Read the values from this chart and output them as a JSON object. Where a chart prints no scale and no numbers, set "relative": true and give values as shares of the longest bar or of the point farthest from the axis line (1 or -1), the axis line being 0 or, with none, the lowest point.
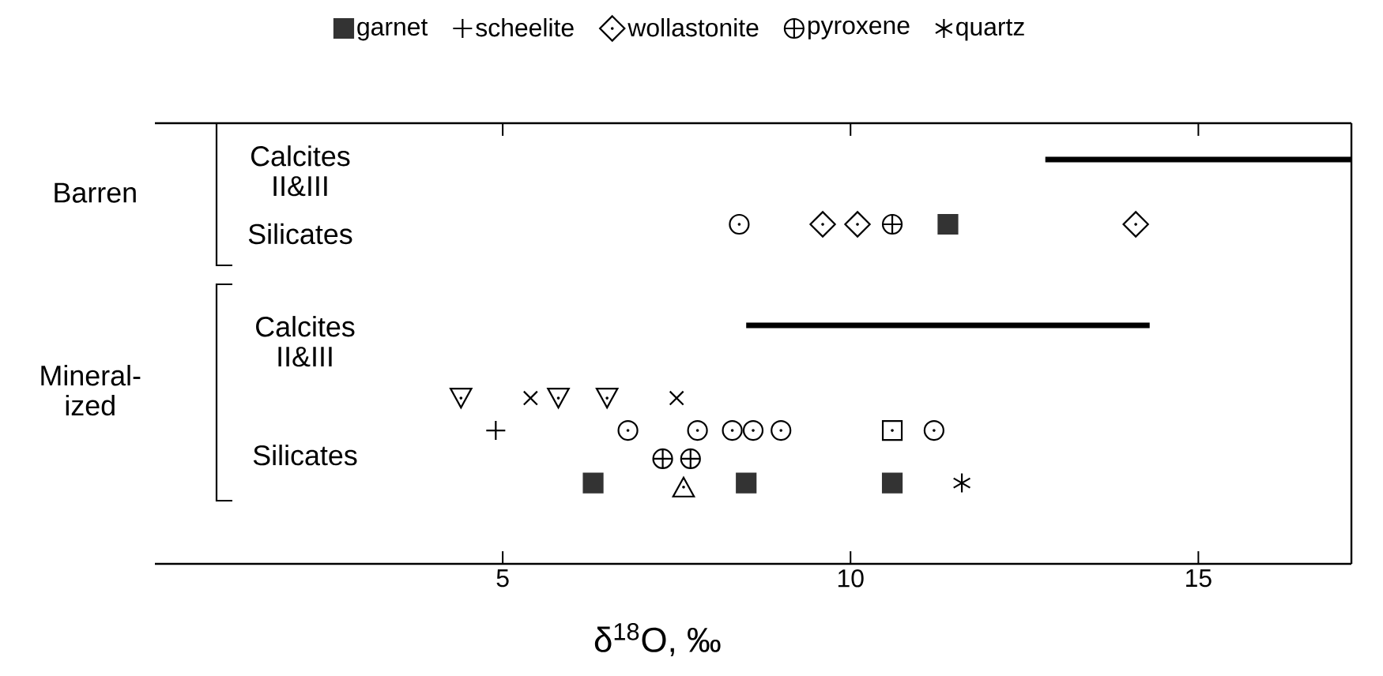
{
  "chart_data": {
    "type": "scatter",
    "xlabel": "δ$^{18}$O, ‰",
    "relative": true,
    "xlim": [
      0,
      17.2
    ],
    "xticks": [
      5,
      10,
      15
    ],
    "tick_labels": "x",
    "legend": "top",
    "annotations": [
      "Barren",
      "Calcites II&III",
      "Silicates",
      "Mineral- ized",
      "Calcites II&III",
      "Silicates"
    ],
    "series": [
      {
        "name": "garnet",
        "color": "#333333",
        "marker": "square",
        "x": [
          11.4,
          6.3,
          8.5,
          10.6
        ],
        "values": [
          0.84,
          0.2,
          0.2,
          0.2
        ]
      },
      {
        "name": "scheelite",
        "color": "#000000",
        "marker": "cross",
        "x": [
          4.9
        ],
        "values": [
          0.33
        ]
      },
      {
        "name": "wollastonite",
        "color": "#000000",
        "marker": "diamond",
        "x": [
          9.6,
          10.1,
          14.1
        ],
        "values": [
          0.84,
          0.84,
          0.84
        ]
      },
      {
        "name": "pyroxene",
        "color": "#000000",
        "x": [
          10.6,
          7.3,
          7.7
        ],
        "values": [
          0.84,
          0.26,
          0.26
        ]
      },
      {
        "name": "quartz",
        "color": "#000000",
        "x": [
          11.6
        ],
        "values": [
          0.2
        ]
      },
      {
        "color": "#000000",
        "marker": "circle",
        "x": [
          8.4,
          6.8,
          7.8,
          8.3,
          8.6,
          9.0,
          11.2
        ],
        "values": [
          0.84,
          0.33,
          0.33,
          0.33,
          0.33,
          0.33,
          0.33
        ]
      },
      {
        "color": "#000000",
        "x": [
          4.4,
          5.8,
          6.5
        ],
        "values": [
          0.41,
          0.41,
          0.41
        ]
      },
      {
        "color": "#000000",
        "x": [
          5.4,
          7.5
        ],
        "values": [
          0.41,
          0.41
        ]
      },
      {
        "color": "#000000",
        "marker": "triangle",
        "x": [
          7.6
        ],
        "values": [
          0.19
        ]
      },
      {
        "color": "#000000",
        "x": [
          10.6
        ],
        "values": [
          0.33
        ]
      },
      {
        "type": "line",
        "color": "#000000",
        "marker": "none",
        "x": [
          12.8,
          17.2
        ],
        "values": [
          1,
          1
        ]
      },
      {
        "type": "line",
        "color": "#000000",
        "marker": "none",
        "x": [
          8.5,
          14.3
        ],
        "values": [
          0.59,
          0.59
        ]
      }
    ]
  }
}
